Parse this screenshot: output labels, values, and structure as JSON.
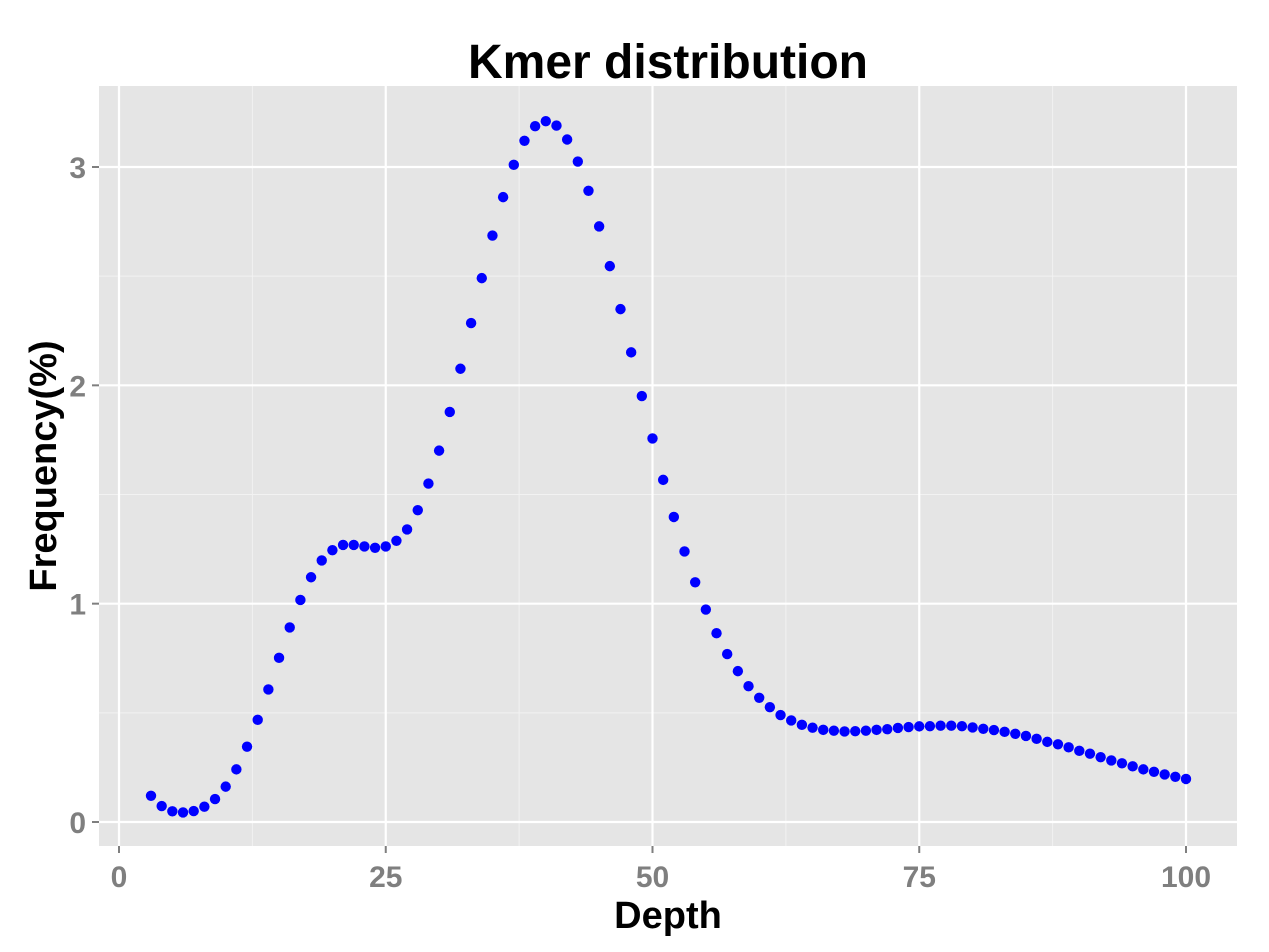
{
  "chart_data": {
    "type": "scatter",
    "title": "Kmer distribution",
    "xlabel": "Depth",
    "ylabel": "Frequency(%)",
    "xlim": [
      -2,
      103
    ],
    "ylim": [
      -0.11,
      3.36
    ],
    "x_ticks": [
      0,
      25,
      50,
      75,
      100
    ],
    "y_ticks": [
      0,
      1,
      2,
      3
    ],
    "grid": true,
    "legend": "none",
    "point_color": "#0000FF",
    "panel_background": "#E5E5E5",
    "series": [
      {
        "name": "Kmer frequency",
        "x": [
          3,
          4,
          5,
          6,
          7,
          8,
          9,
          10,
          11,
          12,
          13,
          14,
          15,
          16,
          17,
          18,
          19,
          20,
          21,
          22,
          23,
          24,
          25,
          26,
          27,
          28,
          29,
          30,
          31,
          32,
          33,
          34,
          35,
          36,
          37,
          38,
          39,
          40,
          41,
          42,
          43,
          44,
          45,
          46,
          47,
          48,
          49,
          50,
          51,
          52,
          53,
          54,
          55,
          56,
          57,
          58,
          59,
          60,
          61,
          62,
          63,
          64,
          65,
          66,
          67,
          68,
          69,
          70,
          71,
          72,
          73,
          74,
          75,
          76,
          77,
          78,
          79,
          80,
          81,
          82,
          83,
          84,
          85,
          86,
          87,
          88,
          89,
          90,
          91,
          92,
          93,
          94,
          95,
          96,
          97,
          98,
          99,
          100
        ],
        "values": [
          0.12,
          0.073,
          0.049,
          0.044,
          0.05,
          0.07,
          0.105,
          0.162,
          0.241,
          0.345,
          0.468,
          0.607,
          0.752,
          0.891,
          1.017,
          1.121,
          1.198,
          1.245,
          1.269,
          1.269,
          1.262,
          1.256,
          1.262,
          1.288,
          1.34,
          1.428,
          1.55,
          1.701,
          1.878,
          2.076,
          2.285,
          2.491,
          2.686,
          2.862,
          3.01,
          3.12,
          3.187,
          3.21,
          3.19,
          3.126,
          3.025,
          2.891,
          2.728,
          2.546,
          2.349,
          2.151,
          1.951,
          1.757,
          1.567,
          1.397,
          1.239,
          1.098,
          0.973,
          0.865,
          0.769,
          0.691,
          0.622,
          0.569,
          0.526,
          0.49,
          0.465,
          0.445,
          0.432,
          0.422,
          0.418,
          0.415,
          0.416,
          0.418,
          0.422,
          0.425,
          0.431,
          0.435,
          0.438,
          0.439,
          0.441,
          0.441,
          0.439,
          0.433,
          0.427,
          0.421,
          0.413,
          0.404,
          0.394,
          0.381,
          0.367,
          0.356,
          0.342,
          0.326,
          0.313,
          0.297,
          0.282,
          0.269,
          0.255,
          0.241,
          0.23,
          0.218,
          0.207,
          0.197
        ]
      }
    ]
  }
}
